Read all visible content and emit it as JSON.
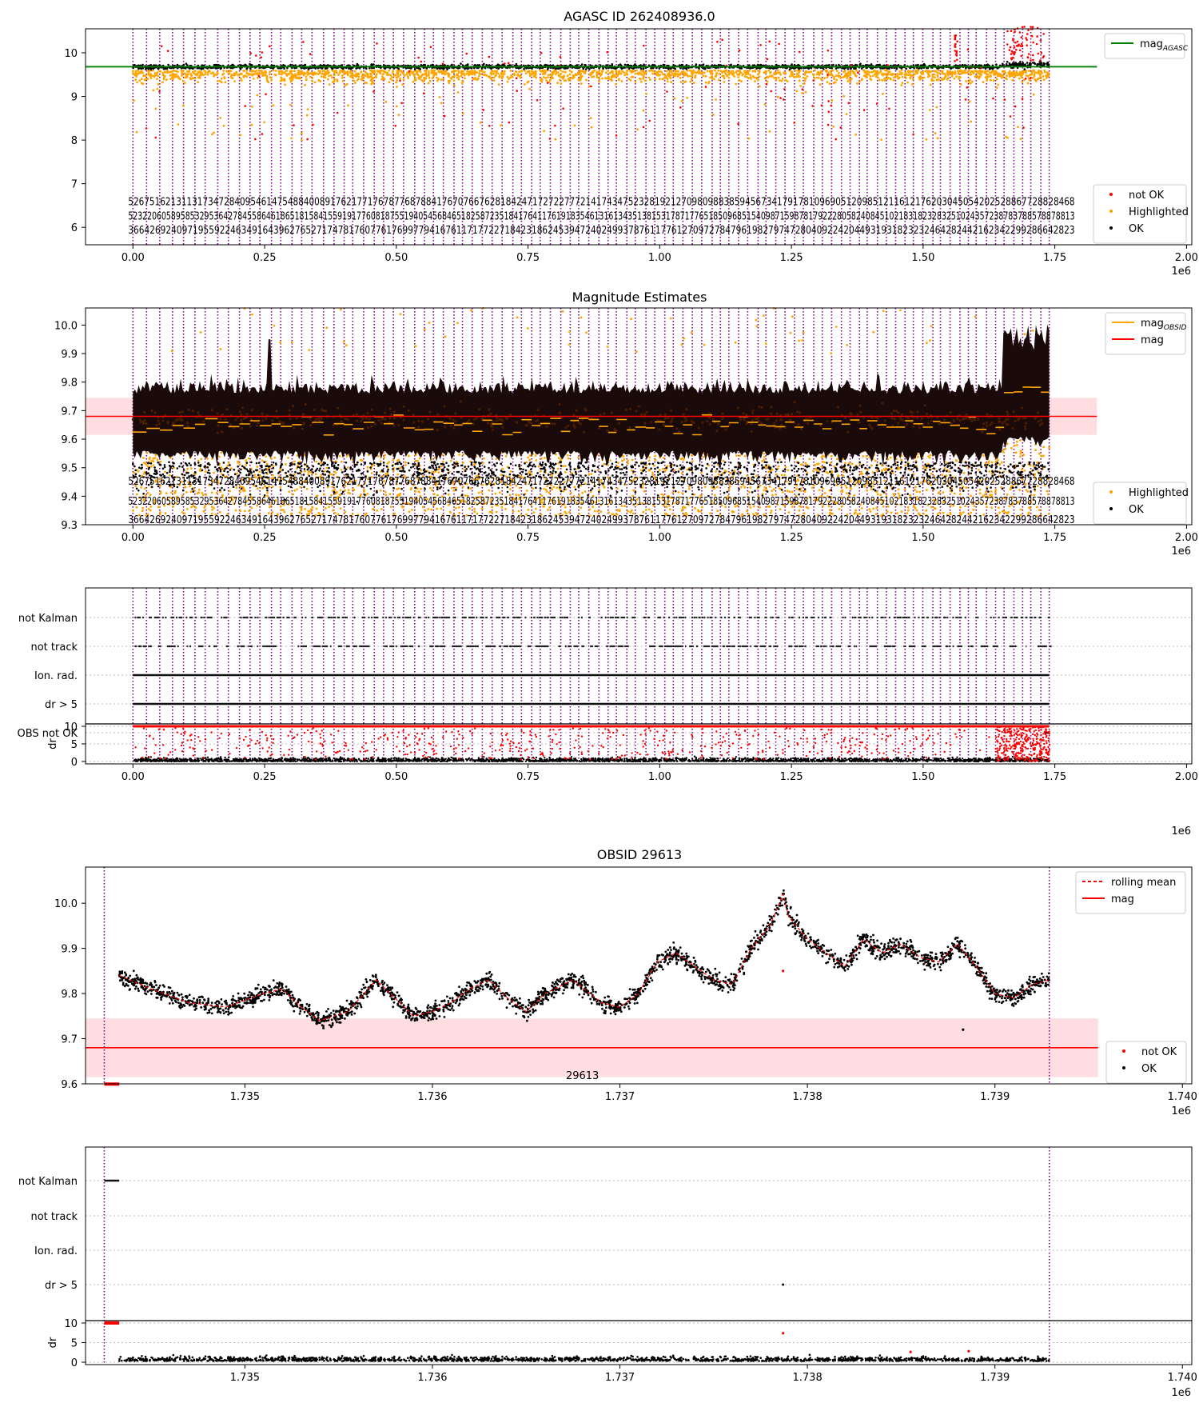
{
  "chart_data": [
    {
      "id": "agasc",
      "type": "scatter",
      "title": "AGASC ID 262408936.0",
      "x_multiplier": "1e6",
      "xlim": [
        -0.09,
        2.01
      ],
      "ylim": [
        5.6,
        10.55
      ],
      "xticks": [
        0.0,
        0.25,
        0.5,
        0.75,
        1.0,
        1.25,
        1.5,
        1.75,
        2.0
      ],
      "xtick_labels": [
        "0.00",
        "0.25",
        "0.50",
        "0.75",
        "1.00",
        "1.25",
        "1.50",
        "1.75",
        "2.00"
      ],
      "yticks": [
        6,
        7,
        8,
        9,
        10
      ],
      "reference_lines": [
        {
          "name": "mag_AGASC",
          "value": 9.68,
          "color": "#008000"
        }
      ],
      "series": [
        {
          "name": "not OK",
          "color": "#ff0000",
          "y_band": [
            8.0,
            10.5
          ],
          "description_points": "sparse"
        },
        {
          "name": "Highlighted",
          "color": "#ffa500",
          "y_band": [
            8.8,
            9.7
          ]
        },
        {
          "name": "OK",
          "color": "#000000",
          "y_band": [
            9.55,
            9.85
          ]
        }
      ],
      "legend": {
        "placement": "top-right & bottom-right",
        "top": [
          "mag_AGASC"
        ],
        "bottom": [
          "not OK",
          "Highlighted",
          "OK"
        ]
      },
      "obsid_text_rows": [
        "5267516213113173472840954614754884008917621771767877687884176707667628184247172722777214174347523281921270980988385945673417917810969051209851211612176203045054202528867728828468",
        "5232206058958532953642784558646186518158415591917760818755194054568465182587235184176411761918354613161343513815317871776518509685154098715987817922280582408451021831823283251024357238783788578878813",
        "36642692409719559224634916439627652717478176077617699779416761171772271842318624539472402499378761177612709727847961982797472804092242044931931823232464282442162342299286642823"
      ],
      "text_row_y": [
        6.6,
        6.27,
        5.95
      ],
      "obsid_count": 95,
      "last_obsid_x": 1.7393,
      "obsid_line_color": "#800080"
    },
    {
      "id": "mag_estimates",
      "type": "scatter",
      "title": "Magnitude Estimates",
      "x_multiplier": "1e6",
      "xlim": [
        -0.09,
        2.01
      ],
      "ylim": [
        9.3,
        10.06
      ],
      "xticks": [
        0.0,
        0.25,
        0.5,
        0.75,
        1.0,
        1.25,
        1.5,
        1.75,
        2.0
      ],
      "xtick_labels": [
        "0.00",
        "0.25",
        "0.50",
        "0.75",
        "1.00",
        "1.25",
        "1.50",
        "1.75",
        "2.00"
      ],
      "yticks": [
        9.3,
        9.4,
        9.5,
        9.6,
        9.7,
        9.8,
        9.9,
        10.0
      ],
      "ytick_labels": [
        "9.3",
        "9.4",
        "9.5",
        "9.6",
        "9.7",
        "9.8",
        "9.9",
        "10.0"
      ],
      "mag": 9.68,
      "mag_band": [
        9.615,
        9.745
      ],
      "series": [
        {
          "name": "mag_OBSID",
          "color": "#ffa500"
        },
        {
          "name": "mag",
          "color": "#ff0000"
        },
        {
          "name": "Highlighted",
          "color": "#ffa500"
        },
        {
          "name": "OK",
          "color": "#000000"
        }
      ],
      "legend": {
        "placement": "top-right & bottom-right",
        "top": [
          "mag_OBSID",
          "mag"
        ],
        "bottom": [
          "Highlighted",
          "OK"
        ]
      }
    },
    {
      "id": "flags",
      "type": "scatter",
      "categories": [
        "not Kalman",
        "not track",
        "Ion. rad.",
        "dr > 5",
        "OBS not OK"
      ],
      "dr_ylim": [
        0,
        10
      ],
      "dr_yticks": [
        0,
        5,
        10
      ],
      "dr_ylabel": "dr",
      "xlim": [
        -0.09,
        2.01
      ],
      "xticks": [
        0.0,
        0.25,
        0.5,
        0.75,
        1.0,
        1.25,
        1.5,
        1.75,
        2.0
      ],
      "xtick_labels": [
        "0.00",
        "0.25",
        "0.50",
        "0.75",
        "1.00",
        "1.25",
        "1.50",
        "1.75",
        "2.00"
      ],
      "x_multiplier": "1e6"
    },
    {
      "id": "obsid",
      "type": "line",
      "title": "OBSID 29613",
      "x_multiplier": "1e6",
      "xlim": [
        1.73415,
        1.74005
      ],
      "ylim": [
        9.6,
        10.08
      ],
      "xticks": [
        1.735,
        1.736,
        1.737,
        1.738,
        1.739,
        1.74
      ],
      "xtick_labels": [
        "1.735",
        "1.736",
        "1.737",
        "1.738",
        "1.739",
        "1.740"
      ],
      "yticks": [
        9.6,
        9.7,
        9.8,
        9.9,
        10.0
      ],
      "ytick_labels": [
        "9.6",
        "9.7",
        "9.8",
        "9.9",
        "10.0"
      ],
      "mag": 9.68,
      "mag_band": [
        9.615,
        9.745
      ],
      "obsid_label": "29613",
      "obsid_label_x": 1.7368,
      "obsid_start": 1.73425,
      "obsid_end": 1.73929,
      "rolling_mean": [
        [
          1.73433,
          9.84
        ],
        [
          1.7345,
          9.81
        ],
        [
          1.7347,
          9.78
        ],
        [
          1.7349,
          9.77
        ],
        [
          1.7351,
          9.8
        ],
        [
          1.7352,
          9.81
        ],
        [
          1.7353,
          9.77
        ],
        [
          1.7354,
          9.74
        ],
        [
          1.73555,
          9.76
        ],
        [
          1.7357,
          9.83
        ],
        [
          1.7358,
          9.79
        ],
        [
          1.7359,
          9.75
        ],
        [
          1.736,
          9.76
        ],
        [
          1.7361,
          9.78
        ],
        [
          1.7362,
          9.81
        ],
        [
          1.7363,
          9.83
        ],
        [
          1.7364,
          9.79
        ],
        [
          1.7365,
          9.76
        ],
        [
          1.7366,
          9.8
        ],
        [
          1.73675,
          9.83
        ],
        [
          1.7369,
          9.78
        ],
        [
          1.737,
          9.77
        ],
        [
          1.7371,
          9.8
        ],
        [
          1.7372,
          9.87
        ],
        [
          1.7373,
          9.89
        ],
        [
          1.7374,
          9.86
        ],
        [
          1.7375,
          9.83
        ],
        [
          1.7376,
          9.82
        ],
        [
          1.7377,
          9.9
        ],
        [
          1.7378,
          9.95
        ],
        [
          1.73787,
          10.02
        ],
        [
          1.7379,
          9.97
        ],
        [
          1.738,
          9.92
        ],
        [
          1.7381,
          9.89
        ],
        [
          1.7382,
          9.86
        ],
        [
          1.7383,
          9.92
        ],
        [
          1.7384,
          9.89
        ],
        [
          1.7385,
          9.91
        ],
        [
          1.7386,
          9.88
        ],
        [
          1.7387,
          9.87
        ],
        [
          1.7388,
          9.91
        ],
        [
          1.7389,
          9.86
        ],
        [
          1.739,
          9.8
        ],
        [
          1.7391,
          9.79
        ],
        [
          1.7392,
          9.82
        ],
        [
          1.73929,
          9.83
        ]
      ],
      "outliers_ok": [
        [
          1.73883,
          9.72
        ]
      ],
      "outliers_not_ok": [
        [
          1.73787,
          9.85
        ]
      ],
      "series": [
        {
          "name": "rolling mean",
          "color": "#ff0000"
        },
        {
          "name": "mag",
          "color": "#ff0000"
        },
        {
          "name": "not OK",
          "color": "#ff0000"
        },
        {
          "name": "OK",
          "color": "#000000"
        }
      ],
      "legend": {
        "placement": "top-right & bottom-right",
        "top": [
          "rolling mean",
          "mag"
        ],
        "bottom": [
          "not OK",
          "OK"
        ]
      }
    },
    {
      "id": "obsid_flags",
      "type": "scatter",
      "categories": [
        "not Kalman",
        "not track",
        "Ion. rad.",
        "dr > 5"
      ],
      "dr_ylim": [
        0,
        10
      ],
      "dr_yticks": [
        0,
        5,
        10
      ],
      "dr_ylabel": "dr",
      "xlim": [
        1.73415,
        1.74005
      ],
      "xticks": [
        1.735,
        1.736,
        1.737,
        1.738,
        1.739,
        1.74
      ],
      "xtick_labels": [
        "1.735",
        "1.736",
        "1.737",
        "1.738",
        "1.739",
        "1.740"
      ],
      "x_multiplier": "1e6"
    }
  ],
  "colors": {
    "ok": "#000000",
    "highlighted": "#ffa500",
    "not_ok": "#ff0000",
    "obsid_line": "#800080",
    "agasc_line": "#008000",
    "band": "#ffdde1"
  }
}
